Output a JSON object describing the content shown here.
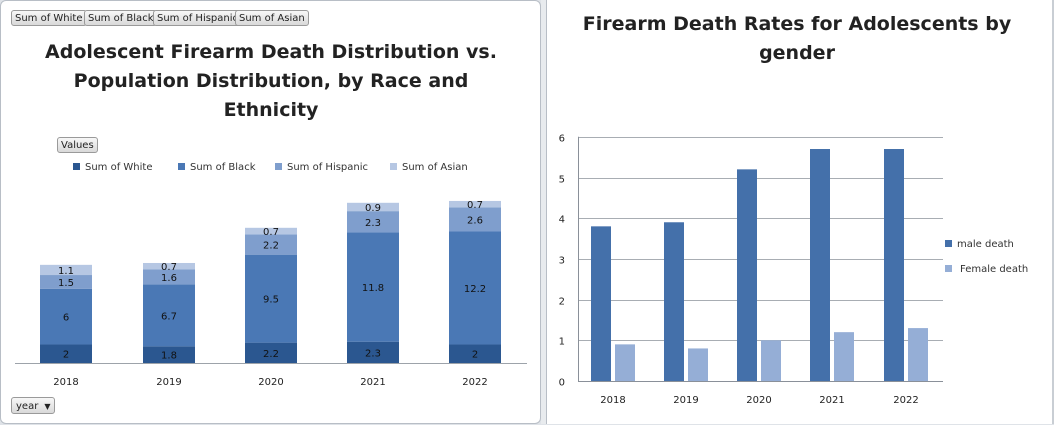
{
  "left_panel": {
    "field_buttons": [
      "Sum of White",
      "Sum of Black",
      "Sum of Hispanic",
      "Sum of Asian"
    ],
    "values_button": "Values",
    "filter_button": "year"
  },
  "colors": {
    "white": "#2b5790",
    "black": "#4a78b5",
    "hispanic": "#7f9ecd",
    "asian": "#b6c7e3",
    "male": "#4470aa",
    "female": "#95aed6"
  },
  "chart_data": [
    {
      "type": "bar",
      "stacked": true,
      "title": "Adolescent Firearm Death Distribution vs. Population Distribution, by Race and Ethnicity",
      "title_lines": [
        "Adolescent Firearm Death Distribution vs.",
        "Population Distribution, by Race and",
        "Ethnicity"
      ],
      "categories": [
        "2018",
        "2019",
        "2020",
        "2021",
        "2022"
      ],
      "series": [
        {
          "name": "Sum of White",
          "values": [
            2,
            1.8,
            2.2,
            2.3,
            2
          ]
        },
        {
          "name": "Sum of Black",
          "values": [
            6,
            6.7,
            9.5,
            11.8,
            12.2
          ]
        },
        {
          "name": "Sum of Hispanic",
          "values": [
            1.5,
            1.6,
            2.2,
            2.3,
            2.6
          ]
        },
        {
          "name": "Sum of Asian",
          "values": [
            1.1,
            0.7,
            0.7,
            0.9,
            0.7
          ]
        }
      ],
      "legend": "top",
      "data_labels": true,
      "grid": false
    },
    {
      "type": "bar",
      "title": "Firearm Death Rates for Adolescents by gender",
      "title_lines": [
        "Firearm Death Rates for Adolescents by",
        "gender"
      ],
      "categories": [
        "2018",
        "2019",
        "2020",
        "2021",
        "2022"
      ],
      "series": [
        {
          "name": "male death",
          "values": [
            3.8,
            3.9,
            5.2,
            5.7,
            5.7
          ]
        },
        {
          "name": "Female death",
          "values": [
            0.9,
            0.8,
            1.0,
            1.2,
            1.3
          ]
        }
      ],
      "y_ticks": [
        "0",
        "1",
        "2",
        "3",
        "4",
        "5",
        "6"
      ],
      "ylim": [
        0,
        6
      ],
      "legend": "right",
      "grid": true
    }
  ]
}
